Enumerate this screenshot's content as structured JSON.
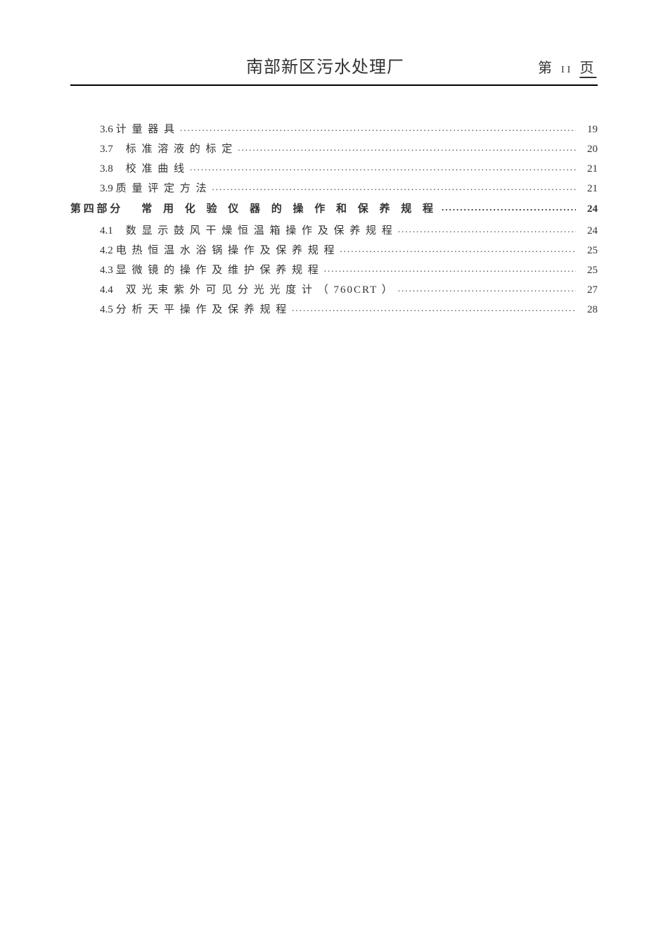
{
  "header": {
    "title": "南部新区污水处理厂",
    "page_prefix": "第",
    "page_number": "II",
    "page_suffix": "页"
  },
  "toc": {
    "entries": [
      {
        "type": "sub",
        "number": "3.6",
        "title": "计 量 器 具",
        "page": "19"
      },
      {
        "type": "sub",
        "number": "3.7",
        "title": "标 准 溶 液 的 标 定",
        "page": "20",
        "gap": true
      },
      {
        "type": "sub",
        "number": "3.8",
        "title": "校 准 曲 线",
        "page": "21",
        "gap": true
      },
      {
        "type": "sub",
        "number": "3.9",
        "title": "质 量 评 定 方 法",
        "page": "21"
      },
      {
        "type": "main",
        "number": "第 四 部 分",
        "title": "常 用 化 验 仪 器 的 操 作 和 保 养 规 程",
        "page": "24"
      },
      {
        "type": "sub",
        "number": "4.1",
        "title": "数 显 示 鼓 风 干 燥 恒 温 箱 操 作 及 保 养 规 程",
        "page": "24",
        "gap": true
      },
      {
        "type": "sub",
        "number": "4.2",
        "title": "电 热 恒 温 水 浴 锅 操 作 及 保 养 规 程",
        "page": "25"
      },
      {
        "type": "sub",
        "number": "4.3",
        "title": "显 微 镜 的 操 作 及 维 护 保 养 规 程",
        "page": "25"
      },
      {
        "type": "sub",
        "number": "4.4",
        "title": "双 光 束 紫 外 可 见 分 光 光 度 计 （ 760CRT ）",
        "page": "27",
        "gap": true
      },
      {
        "type": "sub",
        "number": "4.5",
        "title": "分 析 天 平 操 作 及 保 养 规 程",
        "page": "28"
      }
    ]
  },
  "colors": {
    "background": "#ffffff",
    "text": "#333333",
    "line": "#000000"
  }
}
